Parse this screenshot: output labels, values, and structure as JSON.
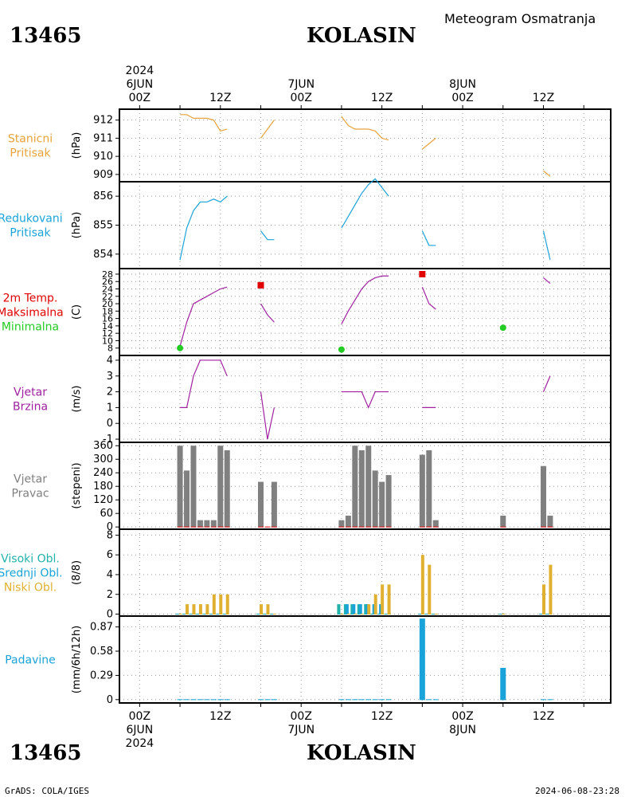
{
  "header": {
    "station_id": "13465",
    "station_name": "KOLASIN",
    "title": "Meteogram Osmatranja"
  },
  "footer": {
    "station_id": "13465",
    "station_name": "KOLASIN",
    "credit": "GrADS: COLA/IGES",
    "timestamp": "2024-06-08-23:28"
  },
  "time_axis": {
    "year": "2024",
    "dates": [
      {
        "label": "6JUN",
        "hour": 0
      },
      {
        "label": "7JUN",
        "hour": 24
      },
      {
        "label": "8JUN",
        "hour": 48
      }
    ],
    "tick_labels": [
      {
        "hour": 0,
        "label": "00Z"
      },
      {
        "hour": 12,
        "label": "12Z"
      },
      {
        "hour": 24,
        "label": "00Z"
      },
      {
        "hour": 36,
        "label": "12Z"
      },
      {
        "hour": 48,
        "label": "00Z"
      },
      {
        "hour": 60,
        "label": "12Z"
      }
    ],
    "range_hours": [
      -3,
      70
    ]
  },
  "colors": {
    "orange": "#e8a33a",
    "cyan": "#1aa3d9",
    "red": "#e00000",
    "green": "#22cc22",
    "purple": "#a020a0",
    "gray": "#808080",
    "teal": "#20b2aa",
    "gold": "#e0b030",
    "grid": "#999999"
  },
  "chart_data": [
    {
      "type": "line",
      "id": "station_pressure",
      "labels": [
        "Stanicni",
        "Pritisak"
      ],
      "ylabel": "(hPa)",
      "ylim": [
        908.6,
        912.6
      ],
      "yticks": [
        909,
        910,
        911,
        912
      ],
      "color": "orange",
      "series": [
        {
          "x": [
            6,
            7,
            8,
            9,
            10,
            11,
            12,
            13
          ],
          "y": [
            912.3,
            912.3,
            912.1,
            912.1,
            912.1,
            912.0,
            911.4,
            911.5
          ]
        },
        {
          "x": [
            18,
            19,
            20
          ],
          "y": [
            911.0,
            911.5,
            912.0
          ]
        },
        {
          "x": [
            30,
            31,
            32,
            33,
            34,
            35,
            36,
            37
          ],
          "y": [
            912.2,
            911.7,
            911.5,
            911.5,
            911.5,
            911.4,
            911.0,
            910.9
          ]
        },
        {
          "x": [
            42,
            43,
            44
          ],
          "y": [
            910.4,
            910.7,
            911.0
          ]
        },
        {
          "x": [
            60,
            61
          ],
          "y": [
            909.2,
            908.9
          ]
        }
      ]
    },
    {
      "type": "line",
      "id": "reduced_pressure",
      "labels": [
        "Redukovani",
        "Pritisak"
      ],
      "ylabel": "(hPa)",
      "ylim": [
        853.5,
        856.5
      ],
      "yticks": [
        854,
        855,
        856
      ],
      "color": "cyan",
      "series": [
        {
          "x": [
            6,
            7,
            8,
            9,
            10,
            11,
            12,
            13
          ],
          "y": [
            853.8,
            854.9,
            855.5,
            855.8,
            855.8,
            855.9,
            855.8,
            856.0
          ]
        },
        {
          "x": [
            18,
            19,
            20
          ],
          "y": [
            854.8,
            854.5,
            854.5
          ]
        },
        {
          "x": [
            30,
            31,
            32,
            33,
            34,
            35,
            36,
            37
          ],
          "y": [
            854.9,
            855.3,
            855.7,
            856.1,
            856.4,
            856.6,
            856.3,
            856.0
          ]
        },
        {
          "x": [
            42,
            43,
            44
          ],
          "y": [
            854.8,
            854.3,
            854.3
          ]
        },
        {
          "x": [
            60,
            61
          ],
          "y": [
            854.8,
            853.8
          ]
        }
      ]
    },
    {
      "type": "line",
      "id": "temperature",
      "labels": [
        "2m Temp.",
        "Maksimalna",
        "Minimalna"
      ],
      "label_colors": [
        "red",
        "red",
        "green"
      ],
      "ylabel": "(C)",
      "ylim": [
        6,
        29.5
      ],
      "yticks": [
        8,
        10,
        12,
        14,
        16,
        18,
        20,
        22,
        24,
        26,
        28
      ],
      "color": "purple",
      "series": [
        {
          "x": [
            6,
            7,
            8,
            9,
            10,
            11,
            12,
            13
          ],
          "y": [
            8.5,
            15,
            20,
            21,
            22,
            23,
            24,
            24.5
          ]
        },
        {
          "x": [
            18,
            19,
            20
          ],
          "y": [
            20,
            17,
            15
          ]
        },
        {
          "x": [
            30,
            31,
            32,
            33,
            34,
            35,
            36,
            37
          ],
          "y": [
            14.5,
            18,
            21,
            24,
            26,
            27,
            27.5,
            27.5
          ]
        },
        {
          "x": [
            42,
            43,
            44
          ],
          "y": [
            24.5,
            20,
            18.5
          ]
        },
        {
          "x": [
            60,
            61
          ],
          "y": [
            27,
            25.5
          ]
        }
      ],
      "maxima": {
        "x": [
          18,
          42
        ],
        "y": [
          25,
          28
        ]
      },
      "minima": {
        "x": [
          6,
          30,
          54
        ],
        "y": [
          8,
          7.6,
          13.5
        ]
      }
    },
    {
      "type": "line",
      "id": "wind_speed",
      "labels": [
        "Vjetar",
        "Brzina"
      ],
      "ylabel": "(m/s)",
      "ylim": [
        -1.2,
        4.3
      ],
      "yticks": [
        -1,
        0,
        1,
        2,
        3,
        4
      ],
      "color": "purple",
      "series": [
        {
          "x": [
            6,
            7,
            8,
            9,
            10,
            11,
            12,
            13
          ],
          "y": [
            1,
            1,
            3,
            4,
            4,
            4,
            4,
            3
          ]
        },
        {
          "x": [
            18,
            19,
            20
          ],
          "y": [
            2,
            -1,
            1
          ]
        },
        {
          "x": [
            30,
            31,
            32,
            33,
            34,
            35,
            36,
            37
          ],
          "y": [
            2,
            2,
            2,
            2,
            1,
            2,
            2,
            2
          ]
        },
        {
          "x": [
            42,
            43,
            44
          ],
          "y": [
            1,
            1,
            1
          ]
        },
        {
          "x": [
            60,
            61
          ],
          "y": [
            2,
            3
          ]
        }
      ]
    },
    {
      "type": "bar",
      "id": "wind_direction",
      "labels": [
        "Vjetar",
        "Pravac"
      ],
      "ylabel": "(stepeni)",
      "ylim": [
        -10,
        375
      ],
      "yticks": [
        0,
        60,
        120,
        180,
        240,
        300,
        360
      ],
      "ytick_labels": [
        "0",
        "60",
        "120",
        "180",
        "240",
        "300",
        "360"
      ],
      "color": "gray",
      "x": [
        6,
        7,
        8,
        9,
        10,
        11,
        12,
        13,
        18,
        19,
        20,
        30,
        31,
        32,
        33,
        34,
        35,
        36,
        37,
        42,
        43,
        44,
        54,
        60,
        61
      ],
      "values": [
        360,
        250,
        360,
        30,
        30,
        30,
        360,
        340,
        200,
        0,
        200,
        30,
        50,
        360,
        340,
        360,
        250,
        200,
        230,
        320,
        340,
        30,
        50,
        270,
        50
      ]
    },
    {
      "type": "bar",
      "id": "cloud_cover",
      "labels": [
        "Visoki Obl.",
        "Srednji Obl.",
        "Niski Obl."
      ],
      "label_colors": [
        "teal",
        "cyan",
        "gold"
      ],
      "ylabel": "(8/8)",
      "ylim": [
        -0.2,
        8.6
      ],
      "yticks": [
        0,
        2,
        4,
        6,
        8
      ],
      "x": [
        6,
        7,
        8,
        9,
        10,
        11,
        12,
        13,
        18,
        19,
        20,
        30,
        31,
        32,
        33,
        34,
        35,
        36,
        37,
        42,
        43,
        44,
        54,
        60,
        61
      ],
      "series": [
        {
          "name": "Visoki Obl.",
          "color": "teal",
          "values": [
            0,
            0,
            0,
            0,
            0,
            0,
            0,
            0,
            0,
            0,
            0,
            1,
            1,
            1,
            1,
            1,
            0,
            0,
            0,
            0,
            0,
            0,
            0,
            0,
            0
          ]
        },
        {
          "name": "Srednji Obl.",
          "color": "cyan",
          "values": [
            0,
            0,
            0,
            0,
            0,
            0,
            0,
            0,
            0,
            0,
            0,
            0,
            1,
            1,
            1,
            1,
            1,
            1,
            0,
            0,
            0,
            0,
            0,
            0,
            0
          ]
        },
        {
          "name": "Niski Obl.",
          "color": "gold",
          "values": [
            0,
            1,
            1,
            1,
            1,
            2,
            2,
            2,
            1,
            1,
            0,
            0,
            0,
            0,
            0,
            1,
            2,
            3,
            3,
            6,
            5,
            0,
            0,
            3,
            5
          ]
        }
      ]
    },
    {
      "type": "bar",
      "id": "precipitation",
      "labels": [
        "Padavine"
      ],
      "ylabel": "(mm/6h/12h)",
      "ylim": [
        -0.04,
        1.0
      ],
      "yticks": [
        0,
        0.29,
        0.58,
        0.87
      ],
      "ytick_labels": [
        "0",
        "0.29",
        "0.58",
        "0.87"
      ],
      "color": "cyan",
      "x": [
        6,
        7,
        8,
        9,
        10,
        11,
        12,
        13,
        18,
        19,
        20,
        30,
        31,
        32,
        33,
        34,
        35,
        36,
        37,
        42,
        43,
        44,
        54,
        60,
        61
      ],
      "values": [
        0,
        0,
        0,
        0,
        0,
        0,
        0,
        0,
        0,
        0,
        0,
        0,
        0,
        0,
        0,
        0,
        0,
        0,
        0,
        0.97,
        0,
        0,
        0.38,
        0,
        0
      ]
    }
  ]
}
